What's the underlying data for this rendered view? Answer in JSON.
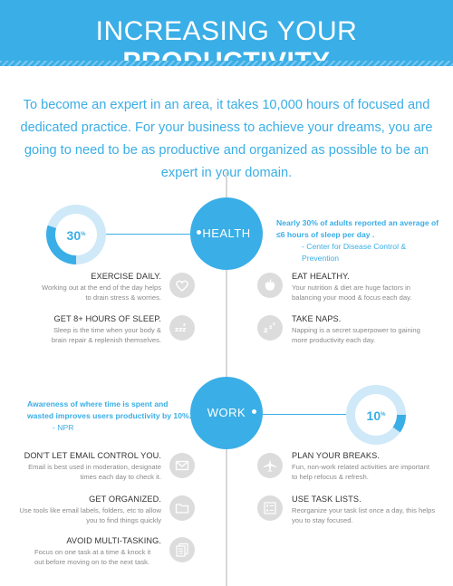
{
  "header": {
    "title_light": "INCREASING YOUR",
    "title_bold": "PRODUCTIVITY"
  },
  "intro": "To become an expert in an area, it takes 10,000 hours of focused and dedicated practice. For your business to achieve your dreams, you are going to need to be as productive and organized as possible to be an expert in your domain.",
  "colors": {
    "accent": "#3aaee6",
    "icon_bg": "#dcdcdc",
    "timeline": "#d8d8d8"
  },
  "health": {
    "label": "HEALTH",
    "stat_value": "30",
    "stat_unit": "%",
    "stat_fraction": 0.3,
    "stat_text": "Nearly 30% of adults reported an average of ≤6 hours of sleep per day .",
    "stat_source": "- Center for Disease Control & Prevention",
    "left_items": [
      {
        "title": "EXERCISE DAILY.",
        "desc": "Working out at the end of the day helps to drain stress & worries.",
        "icon": "heart-icon"
      },
      {
        "title": "GET 8+ HOURS OF SLEEP.",
        "desc": "Sleep is the time when your body & brain repair & replenish themselves.",
        "icon": "sleep-zzz-icon"
      }
    ],
    "right_items": [
      {
        "title": "EAT HEALTHY.",
        "desc": "Your nutrition & diet are huge factors in balancing your mood & focus each day.",
        "icon": "apple-icon"
      },
      {
        "title": "TAKE NAPS.",
        "desc": "Napping is a secret superpower to gaining more productivity each day.",
        "icon": "nap-zz-icon"
      }
    ]
  },
  "work": {
    "label": "WORK",
    "stat_value": "10",
    "stat_unit": "%",
    "stat_fraction": 0.1,
    "stat_text": "Awareness of where time is spent and wasted improves users productivity by 10%.",
    "stat_source": "- NPR",
    "left_items": [
      {
        "title": "DON'T LET EMAIL CONTROL YOU.",
        "desc": "Email is best used in moderation, designate times each day to check it.",
        "icon": "email-icon"
      },
      {
        "title": "GET ORGANIZED.",
        "desc": "Use tools like email labels, folders, etc to allow you to find things quickly",
        "icon": "folder-icon"
      },
      {
        "title": "AVOID MULTI-TASKING.",
        "desc": "Focus on one task at a time & knock it out before moving on to the next task.",
        "icon": "documents-icon"
      }
    ],
    "right_items": [
      {
        "title": "PLAN YOUR BREAKS.",
        "desc": "Fun, non-work related activities are important to help refocus & refresh.",
        "icon": "airplane-icon"
      },
      {
        "title": "USE TASK LISTS.",
        "desc": "Reorganize your task list once a day, this helps you to stay focused.",
        "icon": "task-list-icon"
      }
    ]
  }
}
